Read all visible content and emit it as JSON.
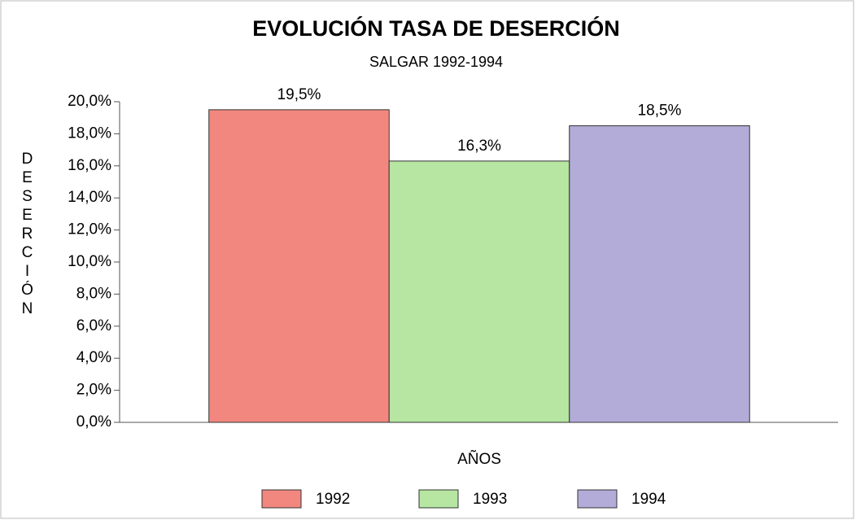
{
  "chart_data": {
    "type": "bar",
    "title": "EVOLUCIÓN TASA DE DESERCIÓN",
    "subtitle": "SALGAR 1992-1994",
    "x_label": "AÑOS",
    "y_label": "DESERCIÓN",
    "categories": [
      null
    ],
    "series": [
      {
        "name": "1992",
        "color": "#f2877f",
        "values": [
          19.5
        ],
        "value_labels": [
          "19,5%"
        ]
      },
      {
        "name": "1993",
        "color": "#b6e6a2",
        "values": [
          16.3
        ],
        "value_labels": [
          "16,3%"
        ]
      },
      {
        "name": "1994",
        "color": "#b3abd8",
        "values": [
          18.5
        ],
        "value_labels": [
          "18,5%"
        ]
      }
    ],
    "ylim": [
      0,
      20
    ],
    "yticks": [
      {
        "value": 0,
        "label": "0,0%"
      },
      {
        "value": 2,
        "label": "2,0%"
      },
      {
        "value": 4,
        "label": "4,0%"
      },
      {
        "value": 6,
        "label": "6,0%"
      },
      {
        "value": 8,
        "label": "8,0%"
      },
      {
        "value": 10,
        "label": "10,0%"
      },
      {
        "value": 12,
        "label": "12,0%"
      },
      {
        "value": 14,
        "label": "14,0%"
      },
      {
        "value": 16,
        "label": "16,0%"
      },
      {
        "value": 18,
        "label": "18,0%"
      },
      {
        "value": 20,
        "label": "20,0%"
      }
    ],
    "legend": "bottom"
  }
}
